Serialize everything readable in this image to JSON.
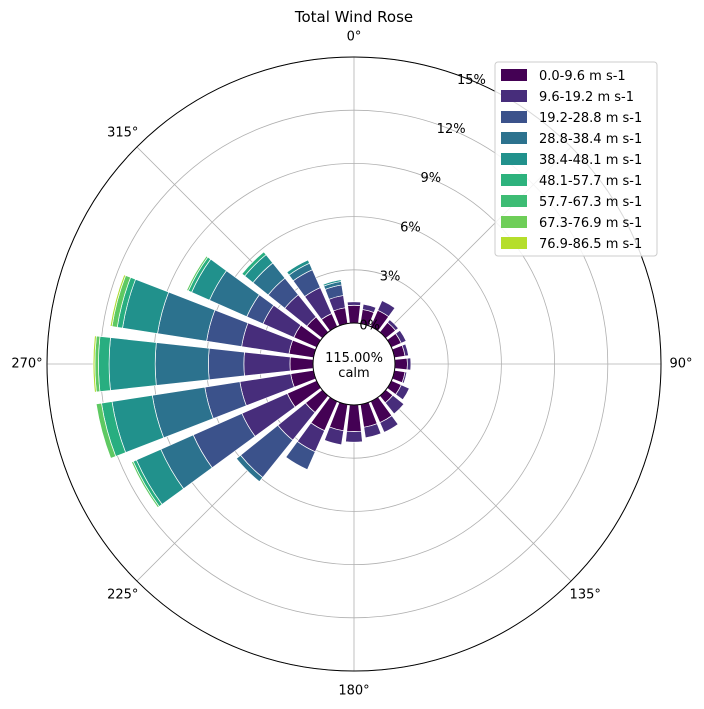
{
  "chart_data": {
    "type": "wind-rose",
    "title": "Total Wind Rose",
    "calm_label": "115.00%\ncalm",
    "direction_ticks": [
      {
        "deg": 0,
        "label": "0°"
      },
      {
        "deg": 45,
        "label": ""
      },
      {
        "deg": 90,
        "label": "90°"
      },
      {
        "deg": 135,
        "label": "135°"
      },
      {
        "deg": 180,
        "label": "180°"
      },
      {
        "deg": 225,
        "label": "225°"
      },
      {
        "deg": 270,
        "label": "270°"
      },
      {
        "deg": 315,
        "label": "315°"
      }
    ],
    "radial_ticks": [
      {
        "value": 0,
        "label": "0%"
      },
      {
        "value": 3,
        "label": "3%"
      },
      {
        "value": 6,
        "label": "6%"
      },
      {
        "value": 9,
        "label": "9%"
      },
      {
        "value": 12,
        "label": "12%"
      },
      {
        "value": 15,
        "label": "15%"
      }
    ],
    "r_max": 15,
    "legend_position": "top-right",
    "bins": [
      {
        "name": "0.0-9.6 m s-1",
        "color": "#440154"
      },
      {
        "name": "9.6-19.2 m s-1",
        "color": "#472d7b"
      },
      {
        "name": "19.2-28.8 m s-1",
        "color": "#3b528b"
      },
      {
        "name": "28.8-38.4 m s-1",
        "color": "#2c728e"
      },
      {
        "name": "38.4-48.1 m s-1",
        "color": "#21918c"
      },
      {
        "name": "48.1-57.7 m s-1",
        "color": "#28ae80"
      },
      {
        "name": "57.7-67.3 m s-1",
        "color": "#5ec962"
      },
      {
        "name": "67.3-76.9 m s-1",
        "color": "#addc30"
      },
      {
        "name": "76.9-86.5 m s-1",
        "color": "#fde725"
      }
    ],
    "legend_colors": [
      "#440154",
      "#472d7b",
      "#3b528b",
      "#2c728e",
      "#21918c",
      "#2db27d",
      "#3dbc74",
      "#6ece58",
      "#b5de2b"
    ],
    "sectors": [
      {
        "direction": 0,
        "values": [
          1.0,
          0.2
        ]
      },
      {
        "direction": 15,
        "values": [
          0.8,
          0.3
        ]
      },
      {
        "direction": 30,
        "values": [
          1.0,
          0.6
        ]
      },
      {
        "direction": 45,
        "values": [
          0.7,
          0.2
        ]
      },
      {
        "direction": 60,
        "values": [
          0.6,
          0.3
        ]
      },
      {
        "direction": 75,
        "values": [
          0.6,
          0.2
        ]
      },
      {
        "direction": 90,
        "values": [
          0.7,
          0.2
        ]
      },
      {
        "direction": 105,
        "values": [
          0.6,
          0.1
        ]
      },
      {
        "direction": 120,
        "values": [
          0.6,
          0.5
        ]
      },
      {
        "direction": 135,
        "values": [
          0.5,
          0.8
        ]
      },
      {
        "direction": 150,
        "values": [
          1.3,
          0.6
        ]
      },
      {
        "direction": 165,
        "values": [
          1.3,
          0.6
        ]
      },
      {
        "direction": 180,
        "values": [
          1.5,
          0.6
        ]
      },
      {
        "direction": 195,
        "values": [
          1.5,
          0.8
        ]
      },
      {
        "direction": 210,
        "values": [
          1.8,
          1.3,
          1.1
        ]
      },
      {
        "direction": 225,
        "values": [
          1.2,
          2.0,
          2.7,
          0.3
        ]
      },
      {
        "direction": 240,
        "values": [
          1.8,
          2.8,
          3.0,
          2.0,
          1.5,
          0.2,
          0.1
        ]
      },
      {
        "direction": 255,
        "values": [
          1.3,
          2.9,
          2.0,
          3.0,
          2.3,
          0.6,
          0.3
        ]
      },
      {
        "direction": 270,
        "values": [
          1.3,
          2.6,
          2.0,
          3.0,
          2.6,
          0.6,
          0.2,
          0.1
        ]
      },
      {
        "direction": 285,
        "values": [
          1.4,
          2.7,
          2.0,
          2.8,
          2.0,
          0.3,
          0.3,
          0.1
        ]
      },
      {
        "direction": 300,
        "values": [
          1.4,
          1.9,
          1.0,
          2.3,
          1.1,
          0.2,
          0.1
        ]
      },
      {
        "direction": 315,
        "values": [
          1.1,
          1.6,
          1.2,
          1.1,
          0.6,
          0.2
        ]
      },
      {
        "direction": 330,
        "values": [
          0.8,
          1.6,
          1.1,
          0.4,
          0.2
        ]
      },
      {
        "direction": 345,
        "values": [
          0.9,
          0.7,
          0.6,
          0.2,
          0.1
        ]
      }
    ]
  }
}
